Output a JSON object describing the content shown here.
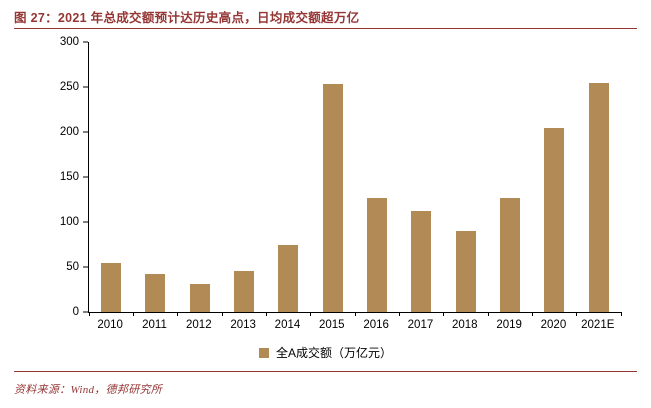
{
  "title": "图 27：2021 年总成交额预计达历史高点，日均成交额超万亿",
  "source": "资料来源：Wind，德邦研究所",
  "colors": {
    "accent": "#943634",
    "bar": "#B18A55",
    "axis": "#000000"
  },
  "chart_data": {
    "type": "bar",
    "title": "图 27：2021 年总成交额预计达历史高点，日均成交额超万亿",
    "categories": [
      "2010",
      "2011",
      "2012",
      "2013",
      "2014",
      "2015",
      "2016",
      "2017",
      "2018",
      "2019",
      "2020",
      "2021E"
    ],
    "values": [
      54,
      42,
      31,
      46,
      74,
      253,
      127,
      112,
      90,
      127,
      204,
      255
    ],
    "xlabel": "",
    "ylabel": "",
    "ylim": [
      0,
      300
    ],
    "yticks": [
      0,
      50,
      100,
      150,
      200,
      250,
      300
    ],
    "grid": false,
    "legend": [
      "全A成交额（万亿元）"
    ],
    "legend_position": "bottom",
    "bar_color": "#B18A55"
  }
}
